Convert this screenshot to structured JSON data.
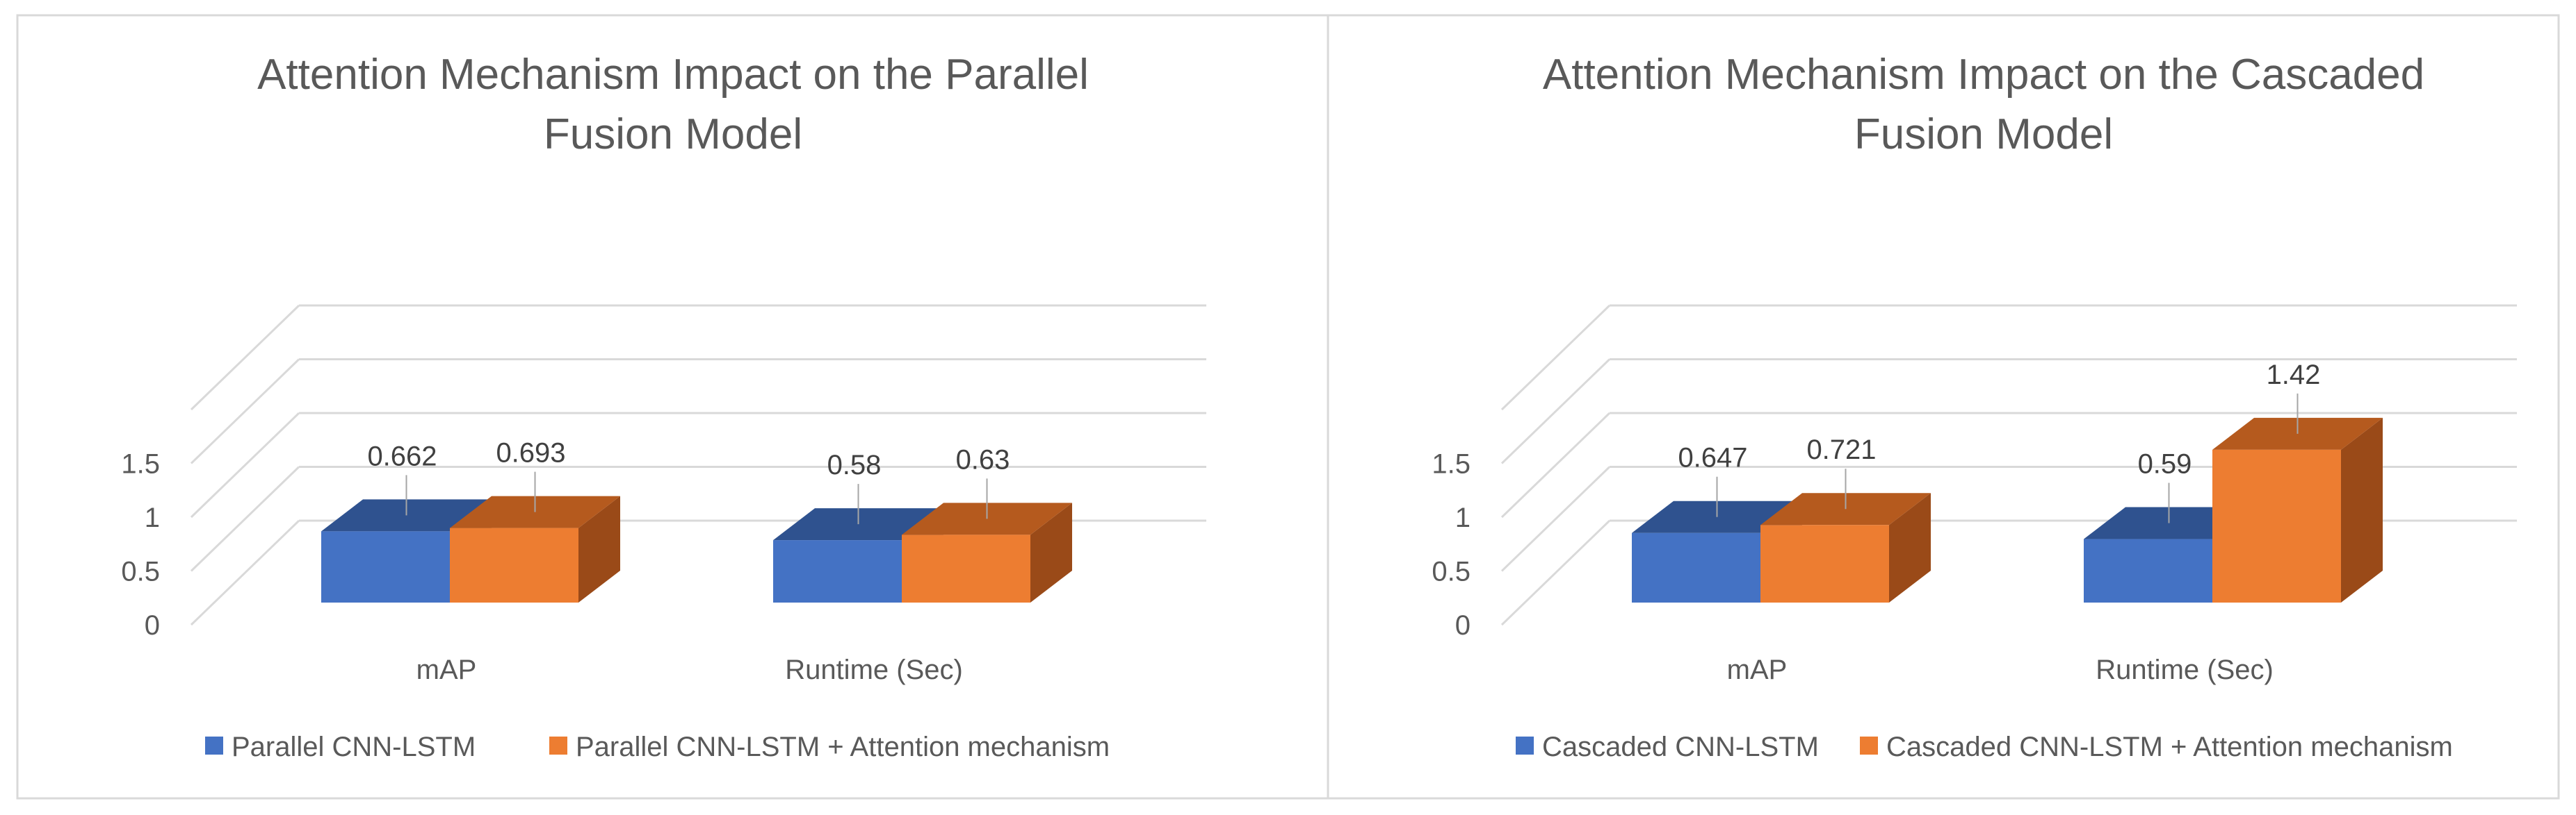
{
  "chart_data": [
    {
      "type": "bar",
      "style": "3d-clustered-column",
      "title": [
        "Attention Mechanism Impact on the Parallel",
        "Fusion Model"
      ],
      "categories": [
        "mAP",
        "Runtime (Sec)"
      ],
      "series": [
        {
          "name": "Parallel CNN-LSTM",
          "values": [
            0.662,
            0.58
          ],
          "labels": [
            "0.662",
            "0.58"
          ],
          "color": "#4472C4"
        },
        {
          "name": "Parallel CNN-LSTM +  Attention mechanism",
          "values": [
            0.693,
            0.63
          ],
          "labels": [
            "0.693",
            "0.63"
          ],
          "color": "#ED7D31"
        }
      ],
      "yticks": [
        "0",
        "0.5",
        "1",
        "1.5"
      ],
      "ylim": [
        0,
        2
      ],
      "xlabel": "",
      "ylabel": "",
      "legend": "bottom",
      "grid": true
    },
    {
      "type": "bar",
      "style": "3d-clustered-column",
      "title": [
        "Attention Mechanism Impact on the Cascaded",
        "Fusion Model"
      ],
      "categories": [
        "mAP",
        "Runtime (Sec)"
      ],
      "series": [
        {
          "name": "Cascaded CNN-LSTM",
          "values": [
            0.647,
            0.59
          ],
          "labels": [
            "0.647",
            "0.59"
          ],
          "color": "#4472C4"
        },
        {
          "name": "Cascaded CNN-LSTM +  Attention mechanism",
          "values": [
            0.721,
            1.42
          ],
          "labels": [
            "0.721",
            "1.42"
          ],
          "color": "#ED7D31"
        }
      ],
      "yticks": [
        "0",
        "0.5",
        "1",
        "1.5"
      ],
      "ylim": [
        0,
        2
      ],
      "xlabel": "",
      "ylabel": "",
      "legend": "bottom",
      "grid": true
    }
  ],
  "colors": {
    "blue_front": "#4472C4",
    "blue_top": "#2F528F",
    "blue_side": "#2E4E86",
    "orange_front": "#ED7D31",
    "orange_top": "#B55A1E",
    "orange_side": "#9A4A18",
    "grid": "#D9D9D9",
    "text": "#595959",
    "border": "#D9D9D9"
  }
}
